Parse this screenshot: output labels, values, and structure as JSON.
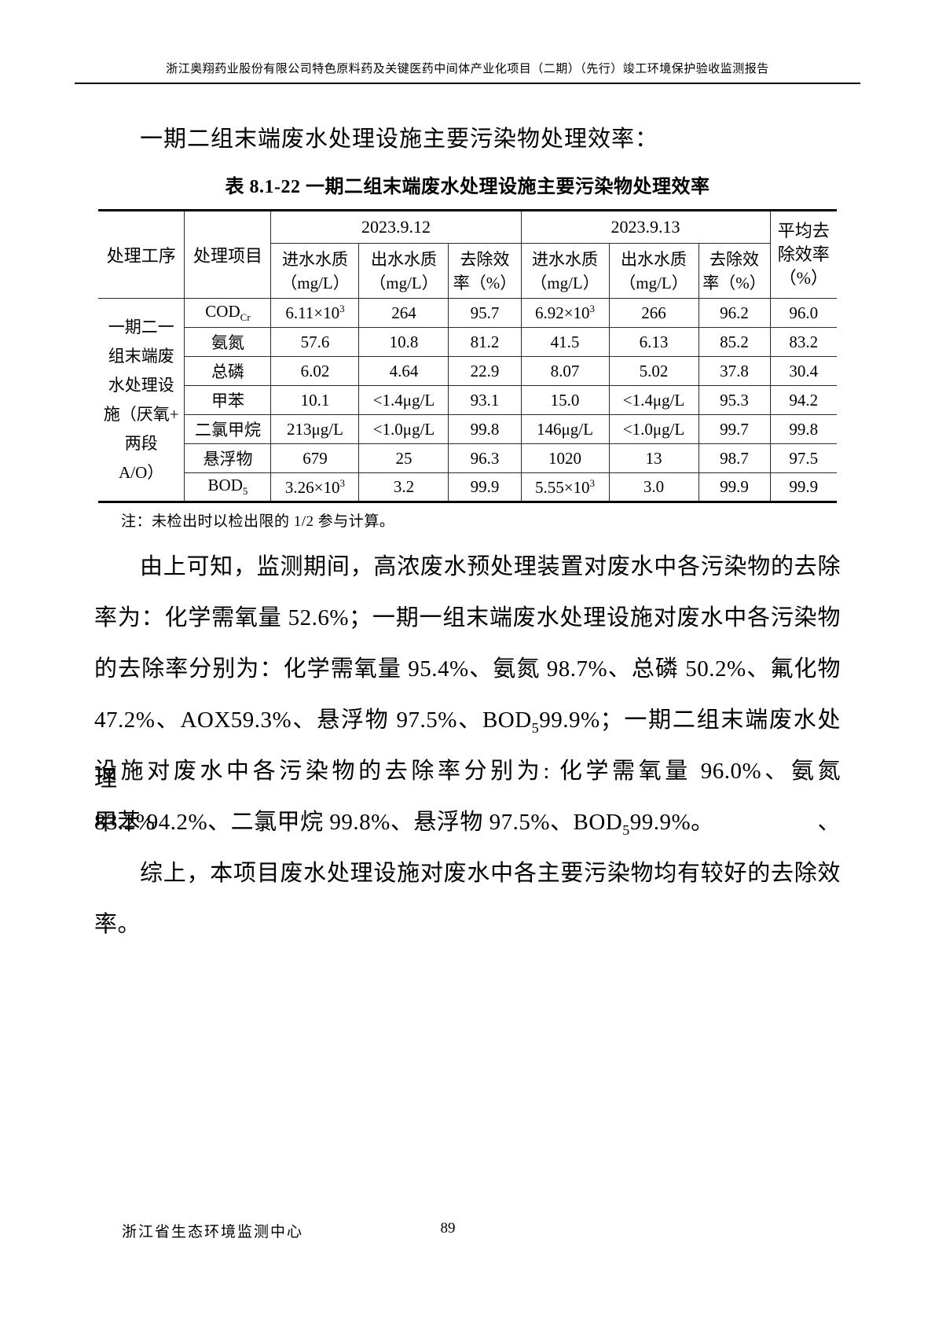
{
  "page": {
    "header": "浙江奥翔药业股份有限公司特色原料药及关键医药中间体产业化项目（二期）（先行）竣工环境保护验收监测报告",
    "intro": "一期二组末端废水处理设施主要污染物处理效率：",
    "table_title": "表 8.1-22  一期二组末端废水处理设施主要污染物处理效率",
    "note": "注：未检出时以检出限的 1/2 参与计算。",
    "footer_org": "浙江省生态环境监测中心",
    "page_number": "89"
  },
  "table": {
    "headers": {
      "process": "处理工序",
      "item": "处理项目",
      "date1": "2023.9.12",
      "date2": "2023.9.13",
      "sub": [
        "进水水质\n（mg/L）",
        "出水水质\n（mg/L）",
        "去除效\n率（%）",
        "进水水质\n（mg/L）",
        "出水水质\n（mg/L）",
        "去除效\n率（%）"
      ],
      "avg": "平均去\n除效率\n（%）"
    },
    "process_label": "一期二一\n组末端废\n水处理设\n施（厌氧+\n两段\nA/O）",
    "rows": [
      {
        "item": "COD<sub>Cr</sub>",
        "cells": [
          "6.11×10<sup>3</sup>",
          "264",
          "95.7",
          "6.92×10<sup>3</sup>",
          "266",
          "96.2",
          "96.0"
        ]
      },
      {
        "item": "氨氮",
        "cells": [
          "57.6",
          "10.8",
          "81.2",
          "41.5",
          "6.13",
          "85.2",
          "83.2"
        ]
      },
      {
        "item": "总磷",
        "cells": [
          "6.02",
          "4.64",
          "22.9",
          "8.07",
          "5.02",
          "37.8",
          "30.4"
        ]
      },
      {
        "item": "甲苯",
        "cells": [
          "10.1",
          "&lt;1.4μg/L",
          "93.1",
          "15.0",
          "&lt;1.4μg/L",
          "95.3",
          "94.2"
        ]
      },
      {
        "item": "二氯甲烷",
        "cells": [
          "213μg/L",
          "&lt;1.0μg/L",
          "99.8",
          "146μg/L",
          "&lt;1.0μg/L",
          "99.7",
          "99.8"
        ]
      },
      {
        "item": "悬浮物",
        "cells": [
          "679",
          "25",
          "96.3",
          "1020",
          "13",
          "98.7",
          "97.5"
        ]
      },
      {
        "item": "BOD<sub>5</sub>",
        "cells": [
          "3.26×10<sup>3</sup>",
          "3.2",
          "99.9",
          "5.55×10<sup>3</sup>",
          "3.0",
          "99.9",
          "99.9"
        ]
      }
    ]
  },
  "body": {
    "p1": [
      "由上可知，监测期间，高浓废水预处理装置对废水中各污染物的去除",
      "率为：化学需氧量 52.6%；一期一组末端废水处理设施对废水中各污染物",
      "的去除率分别为：化学需氧量 95.4%、氨氮 98.7%、总磷 50.2%、氟化物",
      "47.2%、AOX59.3%、悬浮物 97.5%、BOD<sub>5</sub>99.9%；一期二组末端废水处理",
      "设施对废水中各污染物的去除率分别为: 化学需氧量 96.0%、氨氮 83.2%、",
      "甲苯 94.2%、二氯甲烷 99.8%、悬浮物 97.5%、BOD<sub>5</sub>99.9%。"
    ],
    "p2": [
      "综上，本项目废水处理设施对废水中各主要污染物均有较好的去除效",
      "率。"
    ]
  }
}
